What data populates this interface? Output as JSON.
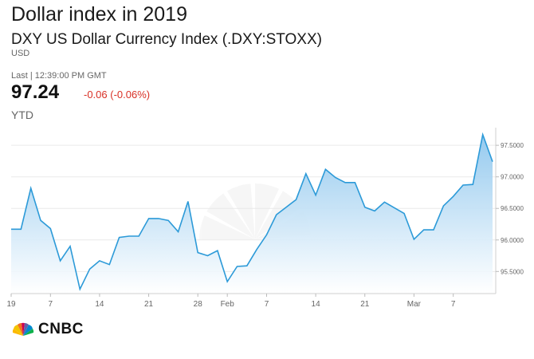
{
  "header": {
    "title": "Dollar index in 2019",
    "subtitle": "DXY US Dollar Currency Index (.DXY:STOXX)",
    "currency": "USD",
    "last_time": "Last | 12:39:00 PM GMT",
    "price": "97.24",
    "change": "-0.06 (-0.06%)",
    "period": "YTD"
  },
  "colors": {
    "line": "#2c9ad8",
    "area_top": "#8fc7ee",
    "area_bottom": "#ffffff",
    "change_negative": "#d93025",
    "grid": "#e9e9e9"
  },
  "logo": {
    "text": "CNBC",
    "icon": "peacock-icon"
  },
  "chart_data": {
    "type": "area",
    "ylim": [
      95.15,
      97.78
    ],
    "grid": true,
    "y_ticks": [
      {
        "value": 95.5,
        "label": "95.5000"
      },
      {
        "value": 96.0,
        "label": "96.0000"
      },
      {
        "value": 96.5,
        "label": "96.5000"
      },
      {
        "value": 97.0,
        "label": "97.0000"
      },
      {
        "value": 97.5,
        "label": "97.5000"
      }
    ],
    "x_ticks": [
      {
        "label": "19",
        "index": 0
      },
      {
        "label": "7",
        "index": 4
      },
      {
        "label": "14",
        "index": 9
      },
      {
        "label": "21",
        "index": 14
      },
      {
        "label": "28",
        "index": 19
      },
      {
        "label": "Feb",
        "index": 22
      },
      {
        "label": "7",
        "index": 26
      },
      {
        "label": "14",
        "index": 31
      },
      {
        "label": "21",
        "index": 36
      },
      {
        "label": "Mar",
        "index": 41
      },
      {
        "label": "7",
        "index": 45
      }
    ],
    "values": [
      96.17,
      96.17,
      96.82,
      96.31,
      96.18,
      95.67,
      95.9,
      95.22,
      95.54,
      95.67,
      95.61,
      96.04,
      96.06,
      96.06,
      96.34,
      96.34,
      96.31,
      96.13,
      96.61,
      95.8,
      95.75,
      95.83,
      95.34,
      95.58,
      95.59,
      95.85,
      96.08,
      96.4,
      96.52,
      96.64,
      97.05,
      96.71,
      97.12,
      96.99,
      96.91,
      96.91,
      96.52,
      96.46,
      96.6,
      96.51,
      96.42,
      96.01,
      96.16,
      96.16,
      96.54,
      96.69,
      96.87,
      96.88,
      97.67,
      97.24
    ]
  }
}
